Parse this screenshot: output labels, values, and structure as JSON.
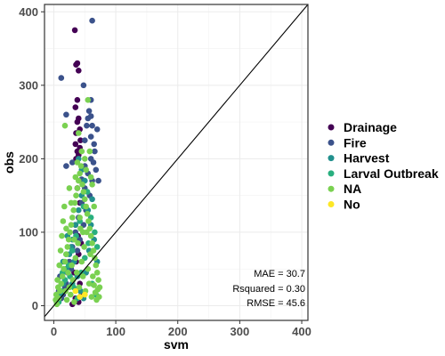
{
  "chart_data": {
    "type": "scatter",
    "title": "",
    "xlabel": "svm",
    "ylabel": "obs",
    "xlim": [
      -15,
      410
    ],
    "ylim": [
      -20,
      410
    ],
    "xticks": [
      0,
      100,
      200,
      300,
      400
    ],
    "yticks": [
      0,
      100,
      200,
      300,
      400
    ],
    "grid": true,
    "legend_position": "right",
    "reference_line": "identity (y = x)",
    "annotations": [
      "MAE = 30.7",
      "Rsquared = 0.30",
      "RMSE = 45.6"
    ],
    "series": [
      {
        "name": "Drainage",
        "color": "#440154",
        "points": [
          [
            30,
            2
          ],
          [
            35,
            10
          ],
          [
            40,
            5
          ],
          [
            45,
            15
          ],
          [
            42,
            30
          ],
          [
            38,
            22
          ],
          [
            33,
            45
          ],
          [
            36,
            60
          ],
          [
            40,
            70
          ],
          [
            44,
            85
          ],
          [
            39,
            95
          ],
          [
            35,
            110
          ],
          [
            42,
            140
          ],
          [
            38,
            160
          ],
          [
            36,
            200
          ],
          [
            40,
            205
          ],
          [
            38,
            210
          ],
          [
            42,
            215
          ],
          [
            35,
            220
          ],
          [
            43,
            225
          ],
          [
            36,
            235
          ],
          [
            42,
            240
          ],
          [
            38,
            250
          ],
          [
            40,
            255
          ],
          [
            35,
            270
          ],
          [
            38,
            280
          ],
          [
            40,
            320
          ],
          [
            36,
            328
          ],
          [
            38,
            330
          ],
          [
            34,
            375
          ]
        ]
      },
      {
        "name": "Fire",
        "color": "#3b528b",
        "points": [
          [
            5,
            5
          ],
          [
            8,
            20
          ],
          [
            10,
            40
          ],
          [
            12,
            10
          ],
          [
            20,
            30
          ],
          [
            25,
            60
          ],
          [
            30,
            80
          ],
          [
            35,
            100
          ],
          [
            40,
            120
          ],
          [
            45,
            140
          ],
          [
            50,
            160
          ],
          [
            55,
            180
          ],
          [
            60,
            200
          ],
          [
            65,
            220
          ],
          [
            70,
            240
          ],
          [
            68,
            185
          ],
          [
            62,
            170
          ],
          [
            58,
            150
          ],
          [
            52,
            130
          ],
          [
            48,
            110
          ],
          [
            42,
            90
          ],
          [
            38,
            75
          ],
          [
            28,
            50
          ],
          [
            18,
            25
          ],
          [
            15,
            15
          ],
          [
            22,
            45
          ],
          [
            55,
            255
          ],
          [
            62,
            245
          ],
          [
            60,
            230
          ],
          [
            66,
            210
          ],
          [
            50,
            190
          ],
          [
            45,
            172
          ],
          [
            57,
            265
          ],
          [
            60,
            280
          ],
          [
            48,
            300
          ],
          [
            50,
            225
          ],
          [
            53,
            245
          ],
          [
            60,
            258
          ],
          [
            64,
            195
          ],
          [
            20,
            260
          ],
          [
            12,
            310
          ],
          [
            20,
            190
          ],
          [
            62,
            388
          ],
          [
            30,
            195
          ],
          [
            72,
            170
          ]
        ]
      },
      {
        "name": "Harvest",
        "color": "#21908d",
        "points": [
          [
            10,
            15
          ],
          [
            15,
            30
          ],
          [
            20,
            50
          ],
          [
            25,
            70
          ],
          [
            30,
            90
          ],
          [
            35,
            110
          ],
          [
            40,
            130
          ],
          [
            45,
            150
          ],
          [
            50,
            170
          ],
          [
            55,
            130
          ],
          [
            60,
            110
          ],
          [
            65,
            90
          ],
          [
            70,
            60
          ],
          [
            22,
            95
          ],
          [
            28,
            80
          ],
          [
            33,
            60
          ],
          [
            38,
            40
          ],
          [
            43,
            20
          ],
          [
            48,
            10
          ],
          [
            52,
            45
          ],
          [
            57,
            75
          ],
          [
            62,
            145
          ],
          [
            30,
            30
          ],
          [
            15,
            60
          ],
          [
            40,
            200
          ],
          [
            45,
            185
          ]
        ]
      },
      {
        "name": "Larval Outbreak",
        "color": "#29af7f",
        "points": [
          [
            8,
            5
          ],
          [
            12,
            20
          ],
          [
            18,
            35
          ],
          [
            24,
            55
          ],
          [
            30,
            75
          ],
          [
            36,
            95
          ],
          [
            42,
            115
          ],
          [
            48,
            135
          ],
          [
            54,
            155
          ],
          [
            60,
            120
          ],
          [
            66,
            100
          ],
          [
            70,
            80
          ],
          [
            20,
            70
          ],
          [
            26,
            40
          ],
          [
            32,
            25
          ],
          [
            38,
            10
          ],
          [
            44,
            45
          ],
          [
            50,
            65
          ],
          [
            56,
            85
          ],
          [
            62,
            30
          ],
          [
            68,
            15
          ],
          [
            14,
            45
          ]
        ]
      },
      {
        "name": "NA",
        "color": "#7ad151",
        "points": [
          [
            5,
            2
          ],
          [
            8,
            10
          ],
          [
            10,
            20
          ],
          [
            12,
            30
          ],
          [
            14,
            40
          ],
          [
            16,
            50
          ],
          [
            18,
            60
          ],
          [
            20,
            70
          ],
          [
            22,
            80
          ],
          [
            24,
            90
          ],
          [
            26,
            100
          ],
          [
            28,
            110
          ],
          [
            30,
            120
          ],
          [
            32,
            130
          ],
          [
            34,
            140
          ],
          [
            36,
            150
          ],
          [
            38,
            160
          ],
          [
            40,
            170
          ],
          [
            42,
            180
          ],
          [
            44,
            190
          ],
          [
            46,
            165
          ],
          [
            48,
            155
          ],
          [
            50,
            145
          ],
          [
            52,
            135
          ],
          [
            54,
            125
          ],
          [
            56,
            115
          ],
          [
            58,
            105
          ],
          [
            60,
            95
          ],
          [
            62,
            85
          ],
          [
            64,
            75
          ],
          [
            66,
            65
          ],
          [
            68,
            55
          ],
          [
            70,
            45
          ],
          [
            72,
            35
          ],
          [
            74,
            25
          ],
          [
            6,
            35
          ],
          [
            9,
            55
          ],
          [
            11,
            75
          ],
          [
            13,
            95
          ],
          [
            15,
            115
          ],
          [
            17,
            135
          ],
          [
            19,
            20
          ],
          [
            21,
            8
          ],
          [
            23,
            45
          ],
          [
            25,
            25
          ],
          [
            27,
            15
          ],
          [
            29,
            55
          ],
          [
            31,
            35
          ],
          [
            33,
            5
          ],
          [
            35,
            65
          ],
          [
            37,
            45
          ],
          [
            39,
            85
          ],
          [
            41,
            25
          ],
          [
            43,
            105
          ],
          [
            45,
            60
          ],
          [
            47,
            40
          ],
          [
            49,
            80
          ],
          [
            51,
            20
          ],
          [
            53,
            100
          ],
          [
            55,
            50
          ],
          [
            57,
            30
          ],
          [
            59,
            70
          ],
          [
            61,
            12
          ],
          [
            63,
            40
          ],
          [
            65,
            28
          ],
          [
            67,
            18
          ],
          [
            69,
            8
          ],
          [
            71,
            22
          ],
          [
            73,
            12
          ],
          [
            4,
            15
          ],
          [
            7,
            25
          ],
          [
            3,
            8
          ],
          [
            18,
            245
          ],
          [
            55,
            280
          ],
          [
            45,
            210
          ],
          [
            50,
            200
          ],
          [
            60,
            175
          ],
          [
            35,
            175
          ],
          [
            25,
            160
          ],
          [
            40,
            235
          ],
          [
            28,
            140
          ],
          [
            52,
            185
          ],
          [
            62,
            165
          ],
          [
            38,
            195
          ],
          [
            58,
            210
          ],
          [
            65,
            135
          ],
          [
            20,
            105
          ],
          [
            42,
            120
          ],
          [
            47,
            100
          ],
          [
            33,
            90
          ]
        ]
      },
      {
        "name": "No",
        "color": "#fde725",
        "points": [
          [
            35,
            20
          ],
          [
            50,
            15
          ],
          [
            42,
            12
          ]
        ]
      }
    ]
  }
}
